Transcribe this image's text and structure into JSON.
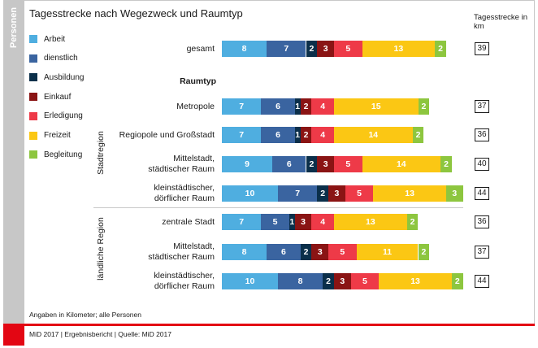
{
  "sidebar": {
    "label": "Personen"
  },
  "chart_data": {
    "type": "bar",
    "orientation": "horizontal",
    "stacked": true,
    "title": "Tagesstrecke nach Wegezweck und Raumtyp",
    "total_header": "Tagesstrecke in km",
    "section_heading": "Raumtyp",
    "region_groups": [
      "Stadtregion",
      "ländliche Region"
    ],
    "legend": [
      {
        "name": "Arbeit",
        "color": "#4faee0"
      },
      {
        "name": "dienstlich",
        "color": "#3a64a0"
      },
      {
        "name": "Ausbildung",
        "color": "#0b2f4a"
      },
      {
        "name": "Einkauf",
        "color": "#8a1414"
      },
      {
        "name": "Erledigung",
        "color": "#ee3a48"
      },
      {
        "name": "Freizeit",
        "color": "#fbc714"
      },
      {
        "name": "Begleitung",
        "color": "#8dc63f"
      }
    ],
    "categories": [
      {
        "label": "gesamt",
        "values": [
          8,
          7,
          2,
          3,
          5,
          13,
          2
        ],
        "total": 39
      },
      {
        "label": "Metropole",
        "values": [
          7,
          6,
          1,
          2,
          4,
          15,
          2
        ],
        "total": 37
      },
      {
        "label": "Regiopole und Großstadt",
        "values": [
          7,
          6,
          1,
          2,
          4,
          14,
          2
        ],
        "total": 36
      },
      {
        "label": "Mittelstadt,\nstädtischer Raum",
        "values": [
          9,
          6,
          2,
          3,
          5,
          14,
          2
        ],
        "total": 40
      },
      {
        "label": "kleinstädtischer,\ndörflicher Raum",
        "values": [
          10,
          7,
          2,
          3,
          5,
          13,
          3
        ],
        "total": 44
      },
      {
        "label": "zentrale Stadt",
        "values": [
          7,
          5,
          1,
          3,
          4,
          13,
          2
        ],
        "total": 36
      },
      {
        "label": "Mittelstadt,\nstädtischer Raum",
        "values": [
          8,
          6,
          2,
          3,
          5,
          11,
          2
        ],
        "total": 37
      },
      {
        "label": "kleinstädtischer,\ndörflicher Raum",
        "values": [
          10,
          8,
          2,
          3,
          5,
          13,
          2
        ],
        "total": 44
      }
    ]
  },
  "note": "Angaben in Kilometer; alle Personen",
  "footer": "MiD 2017  |  Ergebnisbericht  |  Quelle: MiD 2017"
}
